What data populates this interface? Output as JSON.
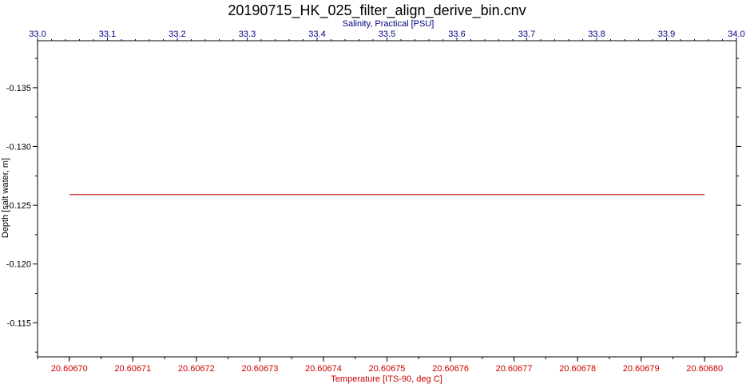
{
  "chart_data": {
    "type": "line",
    "title": "20190715_HK_025_filter_align_derive_bin.cnv",
    "top_axis": {
      "label": "Salinity, Practical [PSU]",
      "range": [
        33.0,
        34.0
      ],
      "ticks": [
        "33.0",
        "33.1",
        "33.2",
        "33.3",
        "33.4",
        "33.5",
        "33.6",
        "33.7",
        "33.8",
        "33.9",
        "34.0"
      ],
      "color": "#000080"
    },
    "bottom_axis": {
      "label": "Temperature [ITS-90, deg C]",
      "range": [
        20.606695,
        20.606805
      ],
      "ticks": [
        "20.60670",
        "20.60671",
        "20.60672",
        "20.60673",
        "20.60674",
        "20.60675",
        "20.60676",
        "20.60677",
        "20.60678",
        "20.60679",
        "20.60680"
      ],
      "color": "#cc0000"
    },
    "y_axis": {
      "label": "Depth [salt water, m]",
      "range": [
        -0.139,
        -0.1121
      ],
      "inverted": true,
      "ticks": [
        "-0.135",
        "-0.130",
        "-0.125",
        "-0.120",
        "-0.115"
      ],
      "color": "#000000"
    },
    "series": [
      {
        "axis": "bottom",
        "color": "#cc0000",
        "points": [
          [
            20.6067,
            -0.1259
          ],
          [
            20.6068,
            -0.1259
          ]
        ]
      }
    ],
    "grid": false
  }
}
